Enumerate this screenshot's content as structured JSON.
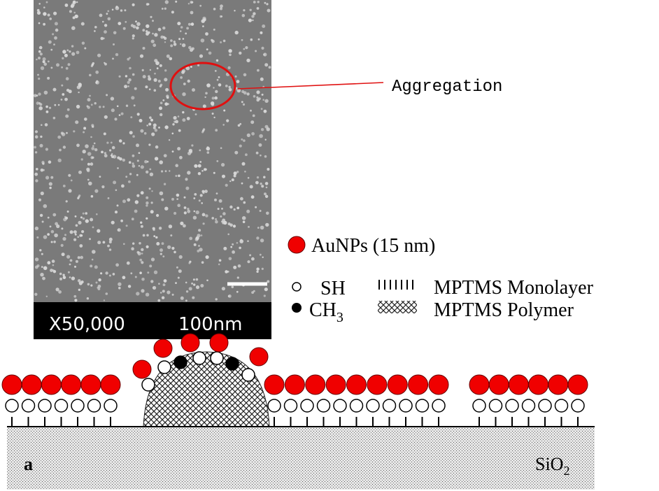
{
  "image": {
    "magnification": "X50,000",
    "scale_bar": "100nm",
    "annotation": "Aggregation"
  },
  "legend": {
    "aunps": "AuNPs (15 nm)",
    "sh": "SH",
    "ch3": {
      "base": "CH",
      "sub": "3"
    },
    "monolayer": "MPTMS Monolayer",
    "polymer": "MPTMS Polymer"
  },
  "schematic": {
    "panel": "a",
    "substrate": {
      "base": "SiO",
      "sub": "2"
    }
  }
}
